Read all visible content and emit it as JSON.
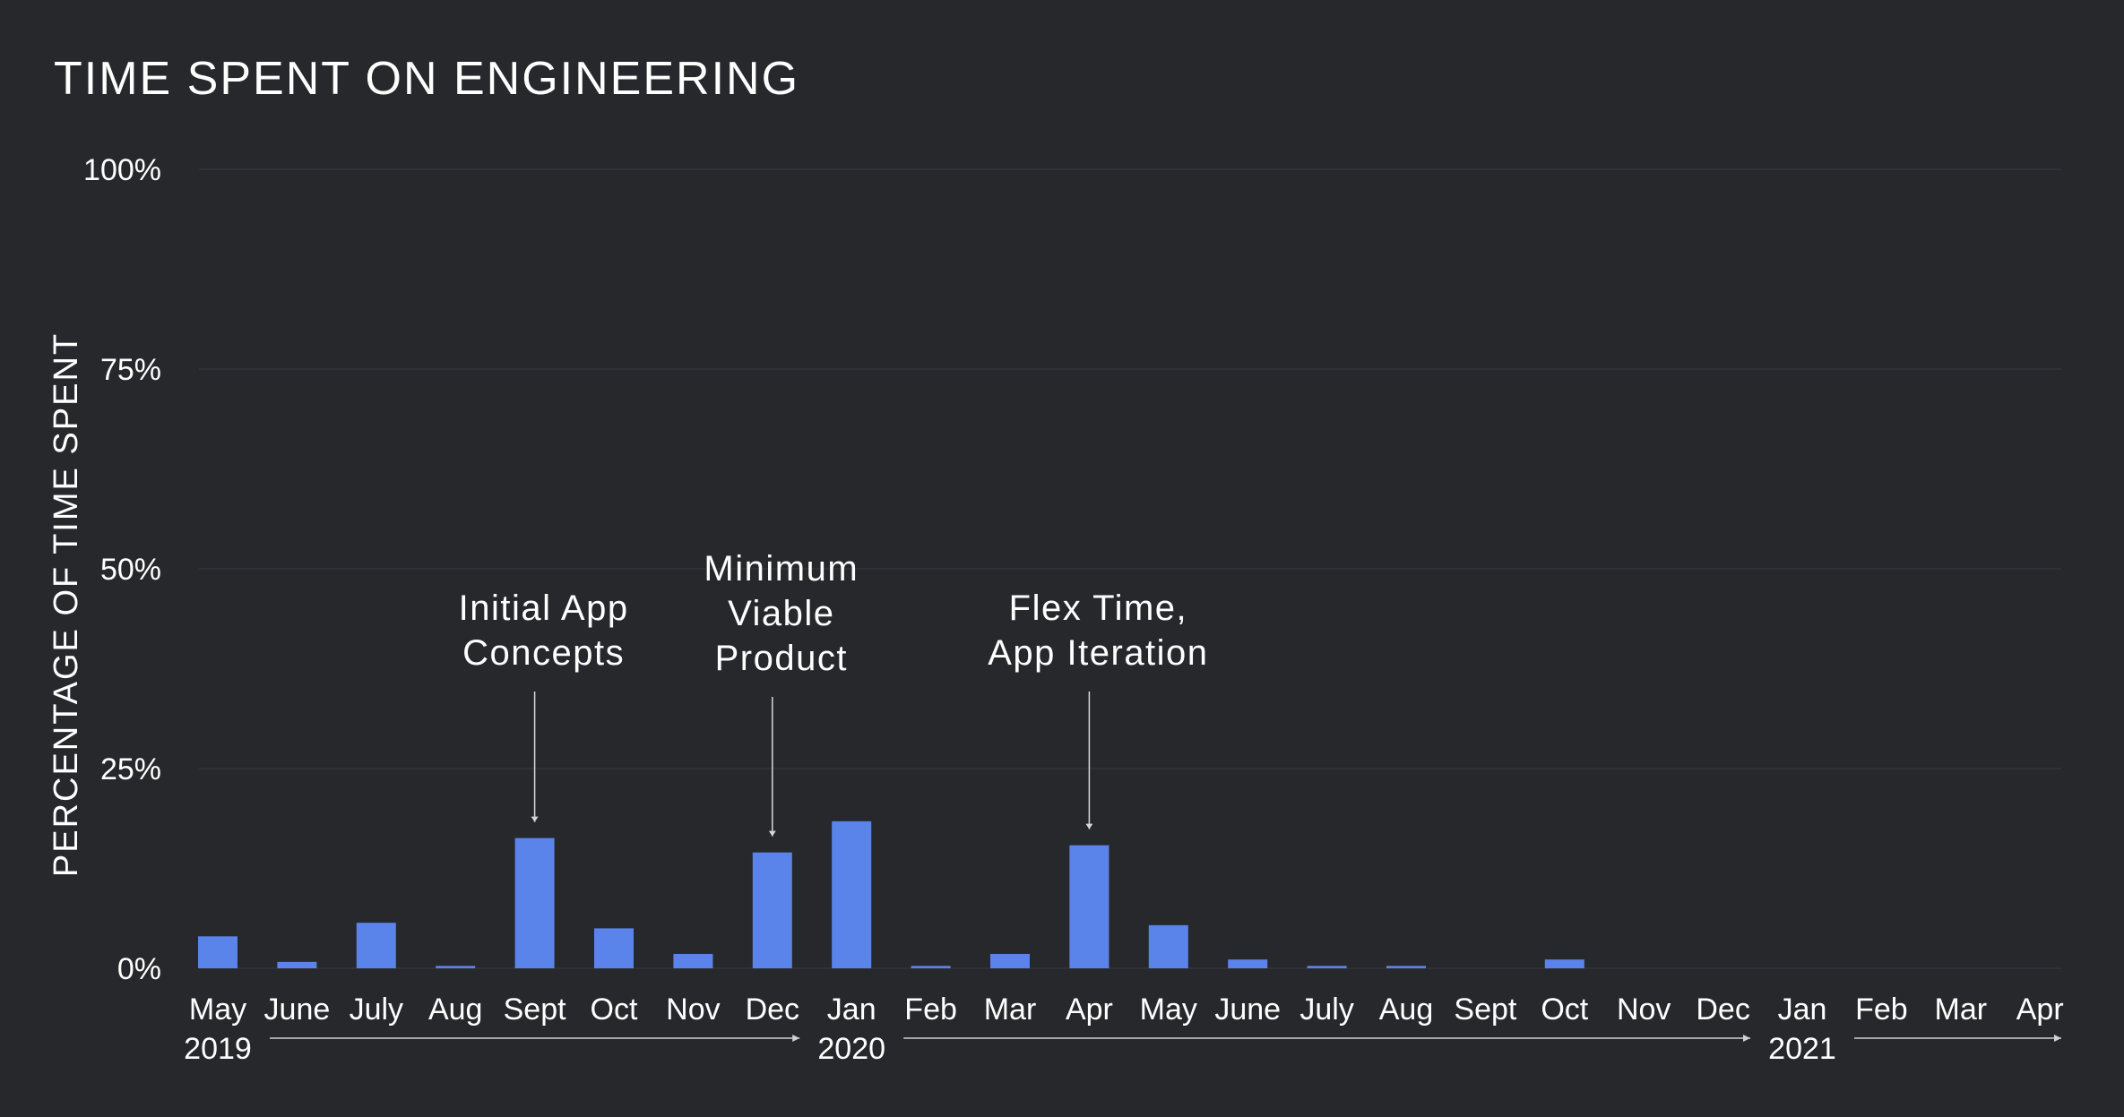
{
  "chart_data": {
    "type": "bar",
    "title": "TIME SPENT ON ENGINEERING",
    "xlabel": "",
    "ylabel": "PERCENTAGE OF TIME SPENT",
    "ylim": [
      0,
      100
    ],
    "yticks": [
      0,
      25,
      50,
      75,
      100
    ],
    "ytick_labels": [
      "0%",
      "25%",
      "50%",
      "75%",
      "100%"
    ],
    "grid": true,
    "categories": [
      "May",
      "June",
      "July",
      "Aug",
      "Sept",
      "Oct",
      "Nov",
      "Dec",
      "Jan",
      "Feb",
      "Mar",
      "Apr",
      "May",
      "June",
      "July",
      "Aug",
      "Sept",
      "Oct",
      "Nov",
      "Dec",
      "Jan",
      "Feb",
      "Mar",
      "Apr"
    ],
    "values": [
      4,
      0.8,
      5.7,
      0.3,
      16.3,
      5,
      1.8,
      14.5,
      18.4,
      0.3,
      1.8,
      15.4,
      5.4,
      1.1,
      0.3,
      0.3,
      0,
      1.1,
      0,
      0,
      0,
      0,
      0,
      0
    ],
    "years": [
      {
        "label": "2019",
        "start_index": 0,
        "end_index": 7
      },
      {
        "label": "2020",
        "start_index": 8,
        "end_index": 19
      },
      {
        "label": "2021",
        "start_index": 20,
        "end_index": 23
      }
    ],
    "annotations": [
      {
        "lines": [
          "Initial App",
          "Concepts"
        ],
        "index": 4
      },
      {
        "lines": [
          "Minimum",
          "Viable",
          "Product"
        ],
        "index": 7
      },
      {
        "lines": [
          "Flex Time,",
          "App Iteration"
        ],
        "index": 11
      }
    ],
    "colors": {
      "bar": "#5b84ea",
      "background": "#27282c",
      "grid": "#303136",
      "text": "#ffffff"
    }
  }
}
